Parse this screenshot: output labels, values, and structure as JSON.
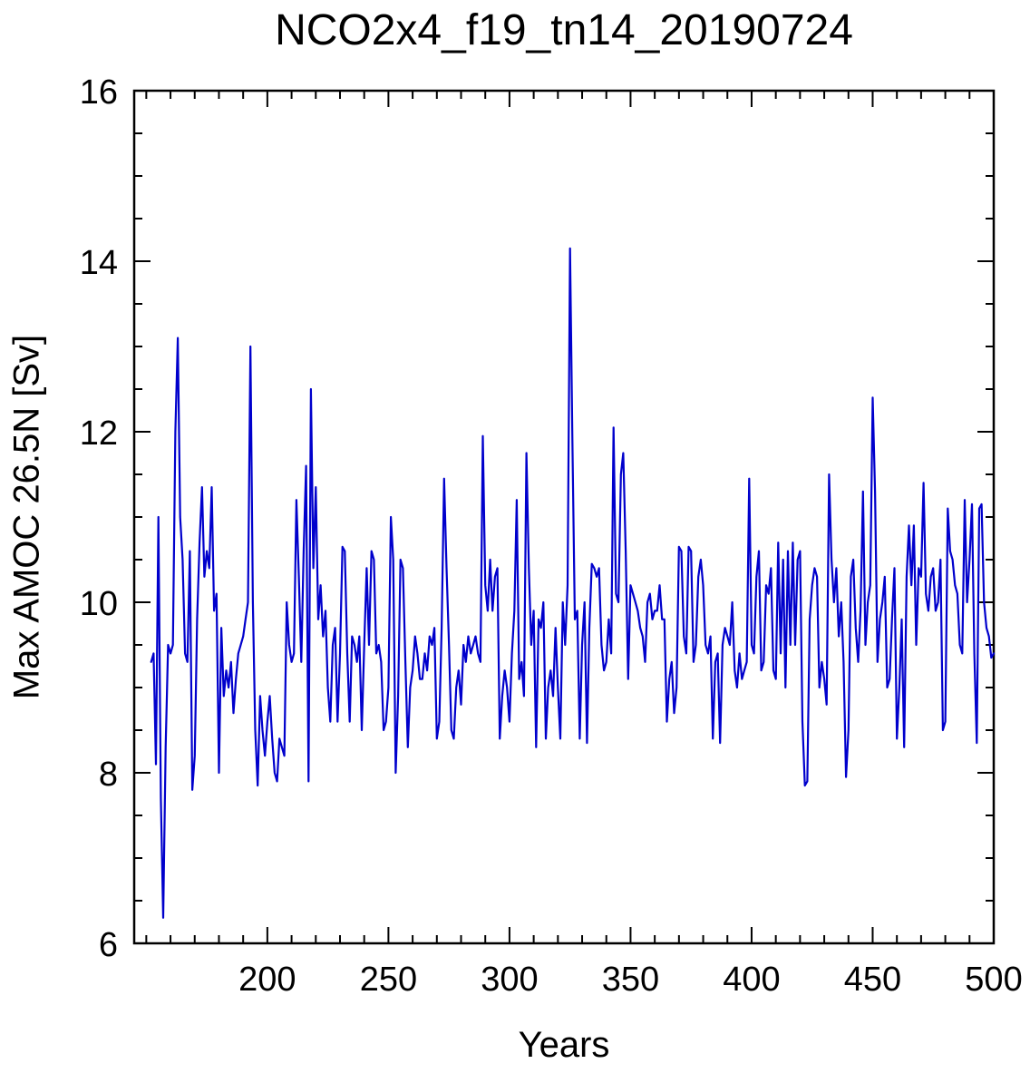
{
  "chart_data": {
    "type": "line",
    "title": "NCO2x4_f19_tn14_20190724",
    "xlabel": "Years",
    "ylabel": "Max AMOC 26.5N [Sv]",
    "xlim": [
      145,
      500
    ],
    "ylim": [
      6,
      16
    ],
    "xticks": [
      200,
      250,
      300,
      350,
      400,
      450,
      500
    ],
    "yticks": [
      6,
      8,
      10,
      12,
      14,
      16
    ],
    "x_minor_step": 10,
    "y_minor_step": 0.5,
    "grid": false,
    "legend": "none",
    "line_color": "#0000cc",
    "frame_color": "#000000",
    "series": [
      {
        "name": "Max AMOC 26.5N",
        "x_start": 152,
        "x_step": 1,
        "values": [
          9.3,
          9.4,
          8.1,
          11.0,
          7.7,
          6.3,
          8.3,
          9.5,
          9.4,
          9.5,
          12.0,
          13.1,
          11.0,
          10.5,
          9.4,
          9.3,
          10.6,
          7.8,
          8.2,
          9.8,
          10.7,
          11.35,
          10.3,
          10.6,
          10.4,
          11.35,
          9.9,
          10.1,
          8.0,
          9.7,
          8.9,
          9.2,
          9.0,
          9.3,
          8.7,
          9.1,
          9.4,
          9.5,
          9.6,
          9.8,
          10.0,
          13.0,
          10.0,
          8.5,
          7.85,
          8.9,
          8.5,
          8.2,
          8.6,
          8.9,
          8.4,
          8.0,
          7.9,
          8.4,
          8.3,
          8.2,
          10.0,
          9.5,
          9.3,
          9.4,
          11.2,
          10.3,
          9.3,
          10.6,
          11.6,
          7.9,
          12.5,
          10.4,
          11.35,
          9.8,
          10.2,
          9.6,
          9.9,
          9.0,
          8.6,
          9.5,
          9.7,
          8.6,
          9.4,
          10.65,
          10.6,
          9.4,
          8.6,
          9.6,
          9.5,
          9.3,
          9.6,
          8.5,
          9.5,
          10.4,
          9.5,
          10.6,
          10.5,
          9.4,
          9.5,
          9.3,
          8.5,
          8.6,
          9.0,
          11.0,
          10.5,
          8.0,
          8.9,
          10.5,
          10.4,
          9.3,
          8.3,
          9.0,
          9.2,
          9.6,
          9.4,
          9.1,
          9.1,
          9.4,
          9.2,
          9.6,
          9.5,
          9.7,
          8.4,
          8.6,
          9.7,
          11.45,
          10.4,
          9.5,
          8.5,
          8.4,
          9.0,
          9.2,
          8.8,
          9.5,
          9.3,
          9.6,
          9.4,
          9.5,
          9.6,
          9.4,
          9.3,
          11.95,
          10.2,
          9.9,
          10.5,
          9.9,
          10.3,
          10.4,
          8.4,
          8.9,
          9.2,
          9.0,
          8.6,
          9.4,
          9.9,
          11.2,
          9.1,
          9.3,
          8.9,
          11.75,
          10.4,
          9.5,
          9.9,
          8.3,
          9.8,
          9.7,
          10.0,
          8.4,
          9.0,
          9.2,
          8.9,
          9.7,
          9.0,
          8.4,
          10.0,
          9.5,
          10.2,
          14.15,
          11.9,
          9.8,
          9.9,
          8.4,
          9.5,
          10.0,
          8.35,
          9.7,
          10.45,
          10.4,
          10.3,
          10.4,
          9.5,
          9.2,
          9.3,
          9.8,
          9.4,
          12.05,
          10.1,
          10.0,
          11.5,
          11.75,
          10.6,
          9.1,
          10.2,
          10.1,
          10.0,
          9.9,
          9.7,
          9.6,
          9.3,
          10.0,
          10.1,
          9.8,
          9.9,
          9.9,
          10.2,
          9.8,
          9.8,
          8.6,
          9.1,
          9.3,
          8.7,
          9.0,
          10.65,
          10.6,
          9.6,
          9.4,
          10.65,
          10.6,
          9.3,
          9.5,
          10.3,
          10.5,
          10.2,
          9.5,
          9.4,
          9.6,
          8.4,
          9.3,
          9.4,
          8.35,
          9.5,
          9.7,
          9.6,
          9.5,
          10.0,
          9.2,
          9.0,
          9.4,
          9.1,
          9.2,
          9.3,
          11.45,
          9.5,
          9.4,
          10.3,
          10.6,
          9.2,
          9.3,
          10.2,
          10.1,
          10.4,
          9.2,
          9.1,
          10.7,
          9.4,
          10.5,
          9.0,
          10.6,
          9.5,
          10.7,
          9.5,
          10.5,
          10.6,
          8.6,
          7.85,
          7.9,
          9.8,
          10.2,
          10.4,
          10.3,
          9.0,
          9.3,
          9.1,
          8.8,
          11.5,
          10.5,
          10.0,
          10.4,
          9.6,
          10.0,
          9.3,
          7.95,
          8.5,
          10.3,
          10.5,
          9.7,
          9.3,
          9.9,
          11.3,
          9.5,
          10.0,
          10.2,
          12.4,
          11.3,
          9.3,
          9.8,
          10.0,
          10.3,
          9.0,
          9.1,
          9.8,
          10.4,
          8.4,
          9.0,
          9.8,
          8.3,
          10.3,
          10.9,
          10.2,
          10.9,
          9.5,
          10.4,
          10.3,
          11.4,
          10.1,
          9.9,
          10.3,
          10.4,
          9.9,
          10.0,
          10.5,
          8.5,
          8.6,
          11.1,
          10.6,
          10.5,
          10.2,
          10.1,
          9.5,
          9.4,
          11.2,
          10.0,
          10.5,
          11.15,
          9.4,
          8.35,
          11.1,
          11.15,
          10.0,
          9.7,
          9.6,
          9.35,
          9.4
        ]
      }
    ]
  }
}
